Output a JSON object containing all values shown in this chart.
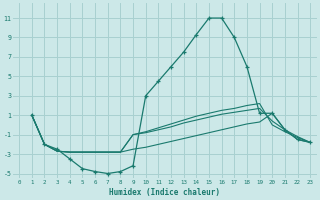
{
  "xlabel": "Humidex (Indice chaleur)",
  "bg_color": "#cce8e8",
  "grid_color": "#a8d0d0",
  "line_color": "#1a7a6e",
  "xlim": [
    -0.5,
    23.5
  ],
  "ylim": [
    -5.5,
    12.5
  ],
  "xticks": [
    0,
    1,
    2,
    3,
    4,
    5,
    6,
    7,
    8,
    9,
    10,
    11,
    12,
    13,
    14,
    15,
    16,
    17,
    18,
    19,
    20,
    21,
    22,
    23
  ],
  "yticks": [
    -5,
    -3,
    -1,
    1,
    3,
    5,
    7,
    9,
    11
  ],
  "line1_x": [
    1,
    2,
    3,
    4,
    5,
    6,
    7,
    8,
    9,
    10,
    11,
    12,
    13,
    14,
    15,
    16,
    17,
    18,
    19,
    20,
    21,
    22,
    23
  ],
  "line1_y": [
    1,
    -2,
    -2.5,
    -3.5,
    -4.5,
    -4.8,
    -5,
    -4.8,
    -4.2,
    3.0,
    4.5,
    6.0,
    7.5,
    9.3,
    11.0,
    11.0,
    9.0,
    6.0,
    1.2,
    1.2,
    -0.5,
    -1.5,
    -1.8
  ],
  "line2_x": [
    1,
    2,
    3,
    4,
    5,
    6,
    7,
    8,
    9,
    10,
    11,
    12,
    13,
    14,
    15,
    16,
    17,
    18,
    19,
    20,
    21,
    22,
    23
  ],
  "line2_y": [
    1,
    -2,
    -2.7,
    -2.8,
    -2.8,
    -2.8,
    -2.8,
    -2.8,
    -2.5,
    -2.3,
    -2.0,
    -1.7,
    -1.4,
    -1.1,
    -0.8,
    -0.5,
    -0.2,
    0.1,
    0.3,
    1.2,
    -0.5,
    -1.5,
    -1.8
  ],
  "line3_x": [
    1,
    2,
    3,
    4,
    5,
    6,
    7,
    8,
    9,
    10,
    11,
    12,
    13,
    14,
    15,
    16,
    17,
    18,
    19,
    20,
    21,
    22,
    23
  ],
  "line3_y": [
    1,
    -2,
    -2.7,
    -2.8,
    -2.8,
    -2.8,
    -2.8,
    -2.8,
    -1.0,
    -0.8,
    -0.5,
    -0.2,
    0.2,
    0.5,
    0.8,
    1.1,
    1.3,
    1.5,
    1.7,
    0.4,
    -0.5,
    -1.2,
    -1.8
  ],
  "line4_x": [
    1,
    2,
    3,
    4,
    5,
    6,
    7,
    8,
    9,
    10,
    11,
    12,
    13,
    14,
    15,
    16,
    17,
    18,
    19,
    20,
    21,
    22,
    23
  ],
  "line4_y": [
    1,
    -2,
    -2.7,
    -2.8,
    -2.8,
    -2.8,
    -2.8,
    -2.8,
    -1.0,
    -0.7,
    -0.3,
    0.1,
    0.5,
    0.9,
    1.2,
    1.5,
    1.7,
    2.0,
    2.2,
    0.0,
    -0.7,
    -1.3,
    -1.8
  ]
}
